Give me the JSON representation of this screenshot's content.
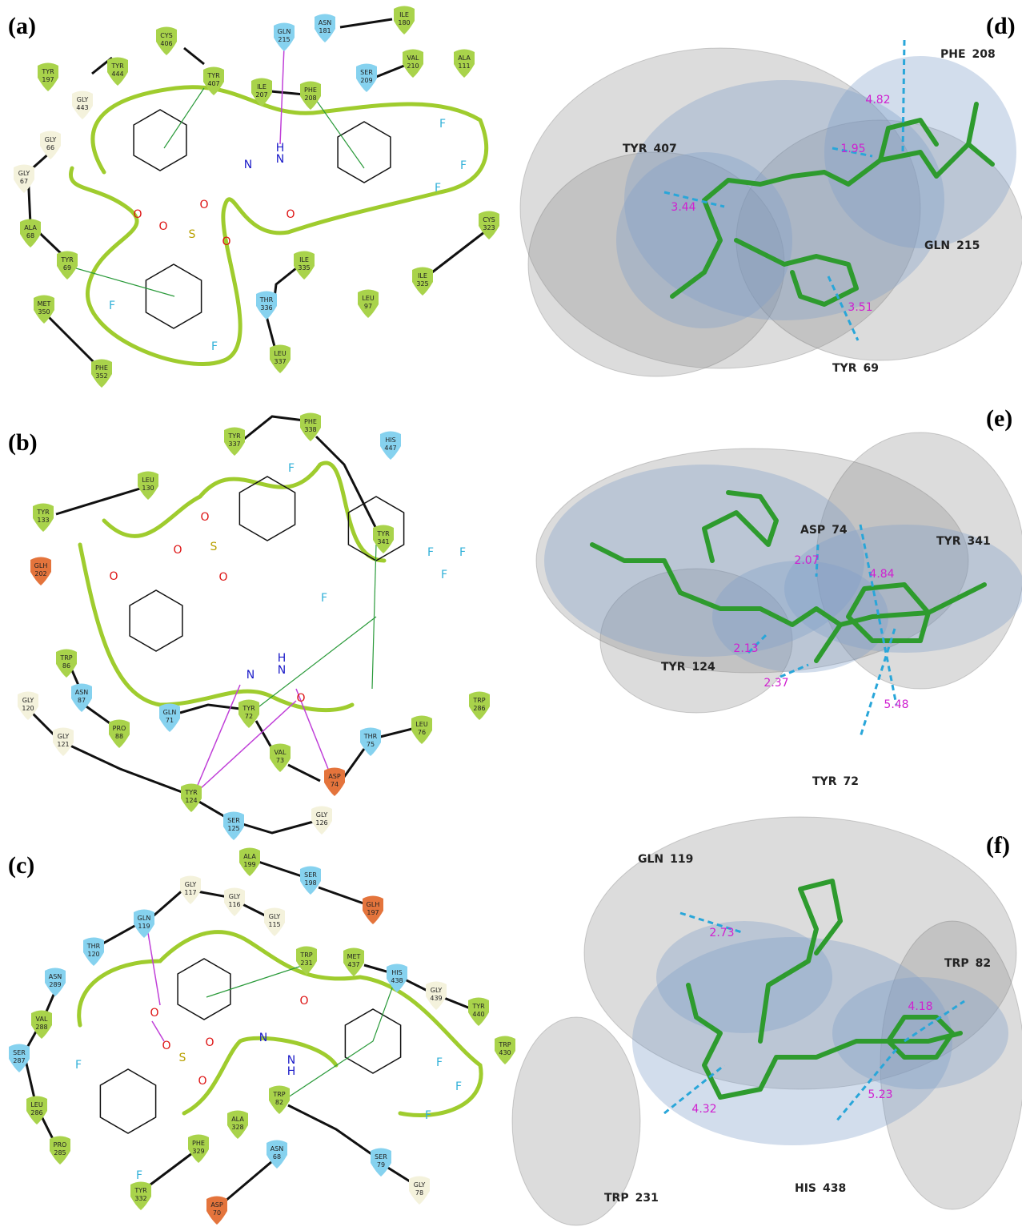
{
  "panels": [
    {
      "label": "(a)",
      "residues": [
        {
          "name": "TYR",
          "num": "197"
        },
        {
          "name": "TYR",
          "num": "444"
        },
        {
          "name": "GLY",
          "num": "443"
        },
        {
          "name": "CYS",
          "num": "406"
        },
        {
          "name": "TYR",
          "num": "407"
        },
        {
          "name": "GLN",
          "num": "215"
        },
        {
          "name": "ASN",
          "num": "181"
        },
        {
          "name": "ILE",
          "num": "180"
        },
        {
          "name": "SER",
          "num": "209"
        },
        {
          "name": "VAL",
          "num": "210"
        },
        {
          "name": "ALA",
          "num": "111"
        },
        {
          "name": "ILE",
          "num": "207"
        },
        {
          "name": "PHE",
          "num": "208"
        },
        {
          "name": "GLY",
          "num": "66"
        },
        {
          "name": "GLY",
          "num": "67"
        },
        {
          "name": "ALA",
          "num": "68"
        },
        {
          "name": "TYR",
          "num": "69"
        },
        {
          "name": "MET",
          "num": "350"
        },
        {
          "name": "PHE",
          "num": "352"
        },
        {
          "name": "THR",
          "num": "336"
        },
        {
          "name": "ILE",
          "num": "335"
        },
        {
          "name": "LEU",
          "num": "97"
        },
        {
          "name": "LEU",
          "num": "337"
        },
        {
          "name": "CYS",
          "num": "323"
        },
        {
          "name": "ILE",
          "num": "325"
        }
      ],
      "atoms": [
        "N",
        "H",
        "N",
        "O",
        "O",
        "O",
        "S",
        "O",
        "O",
        "F",
        "F",
        "F",
        "F",
        "F"
      ]
    },
    {
      "label": "(b)",
      "residues": [
        {
          "name": "TYR",
          "num": "337"
        },
        {
          "name": "PHE",
          "num": "338"
        },
        {
          "name": "HIS",
          "num": "447"
        },
        {
          "name": "LEU",
          "num": "130"
        },
        {
          "name": "TYR",
          "num": "133"
        },
        {
          "name": "TYR",
          "num": "341"
        },
        {
          "name": "GLH",
          "num": "202"
        },
        {
          "name": "TRP",
          "num": "86"
        },
        {
          "name": "GLY",
          "num": "120"
        },
        {
          "name": "ASN",
          "num": "87"
        },
        {
          "name": "PRO",
          "num": "88"
        },
        {
          "name": "GLN",
          "num": "71"
        },
        {
          "name": "TYR",
          "num": "72"
        },
        {
          "name": "TRP",
          "num": "286"
        },
        {
          "name": "THR",
          "num": "75"
        },
        {
          "name": "LEU",
          "num": "76"
        },
        {
          "name": "VAL",
          "num": "73"
        },
        {
          "name": "ASP",
          "num": "74"
        },
        {
          "name": "GLY",
          "num": "121"
        },
        {
          "name": "TYR",
          "num": "124"
        },
        {
          "name": "SER",
          "num": "125"
        },
        {
          "name": "GLY",
          "num": "126"
        }
      ],
      "atoms": [
        "F",
        "O",
        "S",
        "O",
        "O",
        "O",
        "F",
        "F",
        "F",
        "F",
        "N",
        "H",
        "N",
        "O"
      ]
    },
    {
      "label": "(c)",
      "residues": [
        {
          "name": "ALA",
          "num": "199"
        },
        {
          "name": "SER",
          "num": "198"
        },
        {
          "name": "GLH",
          "num": "197"
        },
        {
          "name": "GLY",
          "num": "117"
        },
        {
          "name": "GLY",
          "num": "116"
        },
        {
          "name": "GLY",
          "num": "115"
        },
        {
          "name": "GLN",
          "num": "119"
        },
        {
          "name": "THR",
          "num": "120"
        },
        {
          "name": "TRP",
          "num": "231"
        },
        {
          "name": "MET",
          "num": "437"
        },
        {
          "name": "HIS",
          "num": "438"
        },
        {
          "name": "GLY",
          "num": "439"
        },
        {
          "name": "TYR",
          "num": "440"
        },
        {
          "name": "TRP",
          "num": "430"
        },
        {
          "name": "ASN",
          "num": "289"
        },
        {
          "name": "VAL",
          "num": "288"
        },
        {
          "name": "SER",
          "num": "287"
        },
        {
          "name": "LEU",
          "num": "286"
        },
        {
          "name": "PRO",
          "num": "285"
        },
        {
          "name": "TRP",
          "num": "82"
        },
        {
          "name": "ALA",
          "num": "328"
        },
        {
          "name": "PHE",
          "num": "329"
        },
        {
          "name": "ASN",
          "num": "68"
        },
        {
          "name": "SER",
          "num": "79"
        },
        {
          "name": "GLY",
          "num": "78"
        },
        {
          "name": "TYR",
          "num": "332"
        },
        {
          "name": "ASP",
          "num": "70"
        }
      ],
      "atoms": [
        "O",
        "O",
        "S",
        "O",
        "O",
        "N",
        "O",
        "N",
        "H",
        "F",
        "F",
        "F",
        "F",
        "F"
      ]
    },
    {
      "label": "(d)",
      "residues": [
        {
          "name": "PHE",
          "num": "208"
        },
        {
          "name": "TYR",
          "num": "407"
        },
        {
          "name": "GLN",
          "num": "215"
        },
        {
          "name": "TYR",
          "num": "69"
        }
      ],
      "distances": [
        "4.82",
        "1.95",
        "3.44",
        "3.51"
      ]
    },
    {
      "label": "(e)",
      "residues": [
        {
          "name": "ASP",
          "num": "74"
        },
        {
          "name": "TYR",
          "num": "341"
        },
        {
          "name": "TYR",
          "num": "124"
        },
        {
          "name": "TYR",
          "num": "72"
        }
      ],
      "distances": [
        "2.07",
        "4.84",
        "2.13",
        "2.37",
        "5.48"
      ]
    },
    {
      "label": "(f)",
      "residues": [
        {
          "name": "GLN",
          "num": "119"
        },
        {
          "name": "TRP",
          "num": "82"
        },
        {
          "name": "TRP",
          "num": "231"
        },
        {
          "name": "HIS",
          "num": "438"
        }
      ],
      "distances": [
        "2.73",
        "4.18",
        "4.32",
        "5.23"
      ]
    }
  ]
}
